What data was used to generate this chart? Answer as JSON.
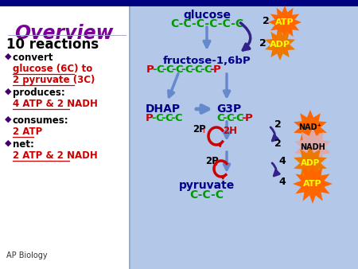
{
  "bg_left_color": "#ffffff",
  "bg_right_color": "#b3c8e8",
  "top_bar_color": "#000080",
  "title": "Overview",
  "title_color": "#7b0099",
  "subtitle": "10 reactions",
  "bullet_items": [
    [
      "convert ",
      "glucose (6C) to\n2 pyruvate (3C)"
    ],
    [
      "produces:\n",
      "4 ATP & 2 NADH"
    ],
    [
      "consumes:\n",
      "2 ATP"
    ],
    [
      "net:\n",
      "2 ATP & 2 NADH"
    ]
  ],
  "ap_biology": "AP Biology",
  "glucose_label": "glucose",
  "glucose_chain": "C-C-C-C-C-C",
  "fructose_label": "fructose-1,6bP",
  "fructose_chain_parts": [
    [
      "P",
      1
    ],
    [
      "-",
      0
    ],
    [
      "C",
      0
    ],
    [
      "-",
      0
    ],
    [
      "C",
      0
    ],
    [
      "-",
      0
    ],
    [
      "C",
      0
    ],
    [
      "-",
      0
    ],
    [
      "C",
      0
    ],
    [
      "-",
      0
    ],
    [
      "C",
      0
    ],
    [
      "-",
      0
    ],
    [
      "C",
      0
    ],
    [
      "-",
      1
    ],
    [
      "P",
      1
    ]
  ],
  "dhap_label": "DHAP",
  "dhap_chain_parts": [
    [
      "P",
      1
    ],
    [
      "-",
      0
    ],
    [
      "C",
      0
    ],
    [
      "-",
      0
    ],
    [
      "C",
      0
    ],
    [
      "-",
      0
    ],
    [
      "C",
      0
    ]
  ],
  "g3p_label": "G3P",
  "g3p_chain_parts": [
    [
      "C",
      0
    ],
    [
      "-",
      0
    ],
    [
      "C",
      0
    ],
    [
      "-",
      0
    ],
    [
      "C",
      0
    ],
    [
      "-",
      1
    ],
    [
      "P",
      1
    ]
  ],
  "pyruvate_label": "pyruvate",
  "pyruvate_chain": "C-C-C",
  "chain_green": "#009900",
  "chain_red": "#cc0000",
  "label_blue": "#00008b",
  "arrow_blue": "#6688cc",
  "arrow_dark": "#332288",
  "red_arrow": "#cc0000",
  "atp_orange": "#ff6600",
  "adp_orange": "#ee7700",
  "nad_orange": "#ff6600",
  "nadh_orange": "#ee8800",
  "bullet_dot": "#44006e",
  "red_text": "#cc0000",
  "black": "#000000"
}
